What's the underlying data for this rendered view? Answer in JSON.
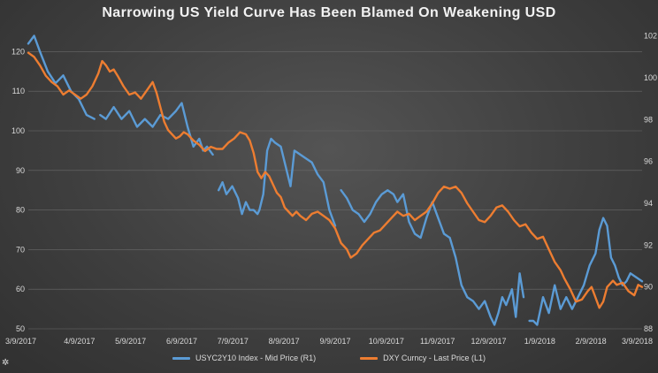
{
  "chart_data": {
    "type": "line",
    "title": "Narrowing US Yield Curve Has Been Blamed On Weakening USD",
    "x_tick_labels": [
      "3/9/2017",
      "4/9/2017",
      "5/9/2017",
      "6/9/2017",
      "7/9/2017",
      "8/9/2017",
      "9/9/2017",
      "10/9/2017",
      "11/9/2017",
      "12/9/2017",
      "1/9/2018",
      "2/9/2018",
      "3/9/2018"
    ],
    "y_left": {
      "ticks": [
        50,
        60,
        70,
        80,
        90,
        100,
        110,
        120
      ],
      "ylim": [
        50,
        125
      ]
    },
    "y_right": {
      "ticks": [
        88,
        90,
        92,
        94,
        96,
        98,
        100,
        102
      ],
      "ylim": [
        88,
        102.2
      ]
    },
    "grid": true,
    "legend_position": "bottom",
    "series": [
      {
        "name": "USYC2Y10 Index - Mid Price (R1)",
        "color": "#5b9bd5",
        "axis": "left",
        "points": [
          [
            0,
            122
          ],
          [
            3,
            124
          ],
          [
            6,
            120
          ],
          [
            10,
            115
          ],
          [
            14,
            112
          ],
          [
            18,
            114
          ],
          [
            22,
            110
          ],
          [
            26,
            108
          ],
          [
            30,
            104
          ],
          [
            34,
            103
          ],
          [
            36,
            null
          ],
          [
            37,
            104
          ],
          [
            40,
            103
          ],
          [
            44,
            106
          ],
          [
            48,
            103
          ],
          [
            52,
            105
          ],
          [
            56,
            101
          ],
          [
            60,
            103
          ],
          [
            64,
            101
          ],
          [
            68,
            104
          ],
          [
            72,
            103
          ],
          [
            76,
            105
          ],
          [
            79,
            107
          ],
          [
            82,
            101
          ],
          [
            85,
            96
          ],
          [
            88,
            98
          ],
          [
            90,
            95
          ],
          [
            92,
            96
          ],
          [
            95,
            94
          ],
          [
            97,
            null
          ],
          [
            98,
            85
          ],
          [
            100,
            87
          ],
          [
            102,
            84
          ],
          [
            105,
            86
          ],
          [
            108,
            83
          ],
          [
            110,
            79
          ],
          [
            112,
            82
          ],
          [
            114,
            80
          ],
          [
            116,
            80
          ],
          [
            118,
            79
          ],
          [
            119,
            80
          ],
          [
            121,
            84
          ],
          [
            123,
            95
          ],
          [
            125,
            98
          ],
          [
            127,
            97
          ],
          [
            130,
            96
          ],
          [
            133,
            90
          ],
          [
            135,
            86
          ],
          [
            137,
            95
          ],
          [
            140,
            94
          ],
          [
            143,
            93
          ],
          [
            146,
            92
          ],
          [
            149,
            89
          ],
          [
            152,
            87
          ],
          [
            155,
            80
          ],
          [
            158,
            76
          ],
          [
            160,
            null
          ],
          [
            161,
            85
          ],
          [
            164,
            83
          ],
          [
            167,
            80
          ],
          [
            170,
            79
          ],
          [
            173,
            77
          ],
          [
            176,
            79
          ],
          [
            179,
            82
          ],
          [
            182,
            84
          ],
          [
            185,
            85
          ],
          [
            188,
            84
          ],
          [
            190,
            82
          ],
          [
            193,
            84
          ],
          [
            196,
            77
          ],
          [
            199,
            74
          ],
          [
            202,
            73
          ],
          [
            205,
            78
          ],
          [
            208,
            82
          ],
          [
            211,
            78
          ],
          [
            214,
            74
          ],
          [
            217,
            73
          ],
          [
            220,
            68
          ],
          [
            223,
            61
          ],
          [
            226,
            58
          ],
          [
            229,
            57
          ],
          [
            232,
            55
          ],
          [
            235,
            57
          ],
          [
            238,
            53
          ],
          [
            240,
            51
          ],
          [
            242,
            54
          ],
          [
            244,
            58
          ],
          [
            246,
            56
          ],
          [
            249,
            60
          ],
          [
            251,
            53
          ],
          [
            253,
            64
          ],
          [
            255,
            58
          ],
          [
            257,
            null
          ],
          [
            258,
            52
          ],
          [
            260,
            52
          ],
          [
            262,
            51
          ],
          [
            265,
            58
          ],
          [
            268,
            54
          ],
          [
            271,
            61
          ],
          [
            274,
            55
          ],
          [
            277,
            58
          ],
          [
            280,
            55
          ],
          [
            283,
            58
          ],
          [
            286,
            61
          ],
          [
            289,
            66
          ],
          [
            292,
            69
          ],
          [
            294,
            75
          ],
          [
            296,
            78
          ],
          [
            298,
            76
          ],
          [
            300,
            68
          ],
          [
            302,
            66
          ],
          [
            304,
            63
          ],
          [
            306,
            61
          ],
          [
            308,
            62
          ],
          [
            310,
            64
          ],
          [
            313,
            63
          ],
          [
            316,
            62
          ]
        ]
      },
      {
        "name": "DXY Curncy - Last Price (L1)",
        "color": "#ed7d31",
        "axis": "right",
        "points": [
          [
            0,
            101.2
          ],
          [
            3,
            101
          ],
          [
            6,
            100.6
          ],
          [
            9,
            100.1
          ],
          [
            12,
            99.8
          ],
          [
            15,
            99.6
          ],
          [
            18,
            99.2
          ],
          [
            21,
            99.4
          ],
          [
            24,
            99.2
          ],
          [
            27,
            99
          ],
          [
            30,
            99.2
          ],
          [
            33,
            99.6
          ],
          [
            36,
            100.2
          ],
          [
            38,
            100.8
          ],
          [
            40,
            100.6
          ],
          [
            42,
            100.3
          ],
          [
            44,
            100.4
          ],
          [
            46,
            100.1
          ],
          [
            49,
            99.6
          ],
          [
            52,
            99.2
          ],
          [
            55,
            99.3
          ],
          [
            58,
            99
          ],
          [
            61,
            99.4
          ],
          [
            64,
            99.8
          ],
          [
            66,
            99.3
          ],
          [
            68,
            98.6
          ],
          [
            70,
            97.9
          ],
          [
            72,
            97.5
          ],
          [
            74,
            97.3
          ],
          [
            76,
            97.1
          ],
          [
            78,
            97.2
          ],
          [
            80,
            97.4
          ],
          [
            82,
            97.3
          ],
          [
            85,
            97
          ],
          [
            88,
            96.8
          ],
          [
            91,
            96.5
          ],
          [
            94,
            96.7
          ],
          [
            97,
            96.6
          ],
          [
            100,
            96.6
          ],
          [
            103,
            96.9
          ],
          [
            106,
            97.1
          ],
          [
            109,
            97.4
          ],
          [
            112,
            97.3
          ],
          [
            114,
            97
          ],
          [
            116,
            96.4
          ],
          [
            118,
            95.5
          ],
          [
            120,
            95.2
          ],
          [
            122,
            95.5
          ],
          [
            124,
            95.3
          ],
          [
            126,
            94.9
          ],
          [
            128,
            94.5
          ],
          [
            130,
            94.3
          ],
          [
            132,
            93.8
          ],
          [
            134,
            93.6
          ],
          [
            136,
            93.4
          ],
          [
            138,
            93.6
          ],
          [
            140,
            93.4
          ],
          [
            143,
            93.2
          ],
          [
            146,
            93.5
          ],
          [
            149,
            93.6
          ],
          [
            152,
            93.4
          ],
          [
            155,
            93.2
          ],
          [
            158,
            92.8
          ],
          [
            161,
            92.1
          ],
          [
            164,
            91.8
          ],
          [
            166,
            91.4
          ],
          [
            169,
            91.6
          ],
          [
            172,
            92
          ],
          [
            175,
            92.3
          ],
          [
            178,
            92.6
          ],
          [
            181,
            92.7
          ],
          [
            184,
            93
          ],
          [
            187,
            93.3
          ],
          [
            190,
            93.6
          ],
          [
            193,
            93.4
          ],
          [
            196,
            93.5
          ],
          [
            199,
            93.2
          ],
          [
            202,
            93.4
          ],
          [
            205,
            93.6
          ],
          [
            208,
            94
          ],
          [
            211,
            94.5
          ],
          [
            214,
            94.8
          ],
          [
            217,
            94.7
          ],
          [
            220,
            94.8
          ],
          [
            223,
            94.5
          ],
          [
            226,
            94
          ],
          [
            229,
            93.6
          ],
          [
            232,
            93.2
          ],
          [
            235,
            93.1
          ],
          [
            238,
            93.4
          ],
          [
            241,
            93.8
          ],
          [
            244,
            93.9
          ],
          [
            247,
            93.6
          ],
          [
            250,
            93.2
          ],
          [
            253,
            92.9
          ],
          [
            256,
            93
          ],
          [
            259,
            92.6
          ],
          [
            262,
            92.3
          ],
          [
            265,
            92.4
          ],
          [
            268,
            91.8
          ],
          [
            271,
            91.2
          ],
          [
            274,
            90.8
          ],
          [
            276,
            90.4
          ],
          [
            279,
            89.9
          ],
          [
            282,
            89.3
          ],
          [
            285,
            89.4
          ],
          [
            288,
            89.8
          ],
          [
            290,
            90
          ],
          [
            292,
            89.5
          ],
          [
            294,
            89
          ],
          [
            296,
            89.3
          ],
          [
            298,
            90
          ],
          [
            301,
            90.3
          ],
          [
            303,
            90.1
          ],
          [
            306,
            90.2
          ],
          [
            309,
            89.8
          ],
          [
            312,
            89.6
          ],
          [
            314,
            90.1
          ],
          [
            316,
            90
          ]
        ]
      }
    ]
  },
  "legend": {
    "r1_label": "USYC2Y10 Index - Mid Price (R1)",
    "l1_label": "DXY Curncy - Last Price (L1)"
  }
}
